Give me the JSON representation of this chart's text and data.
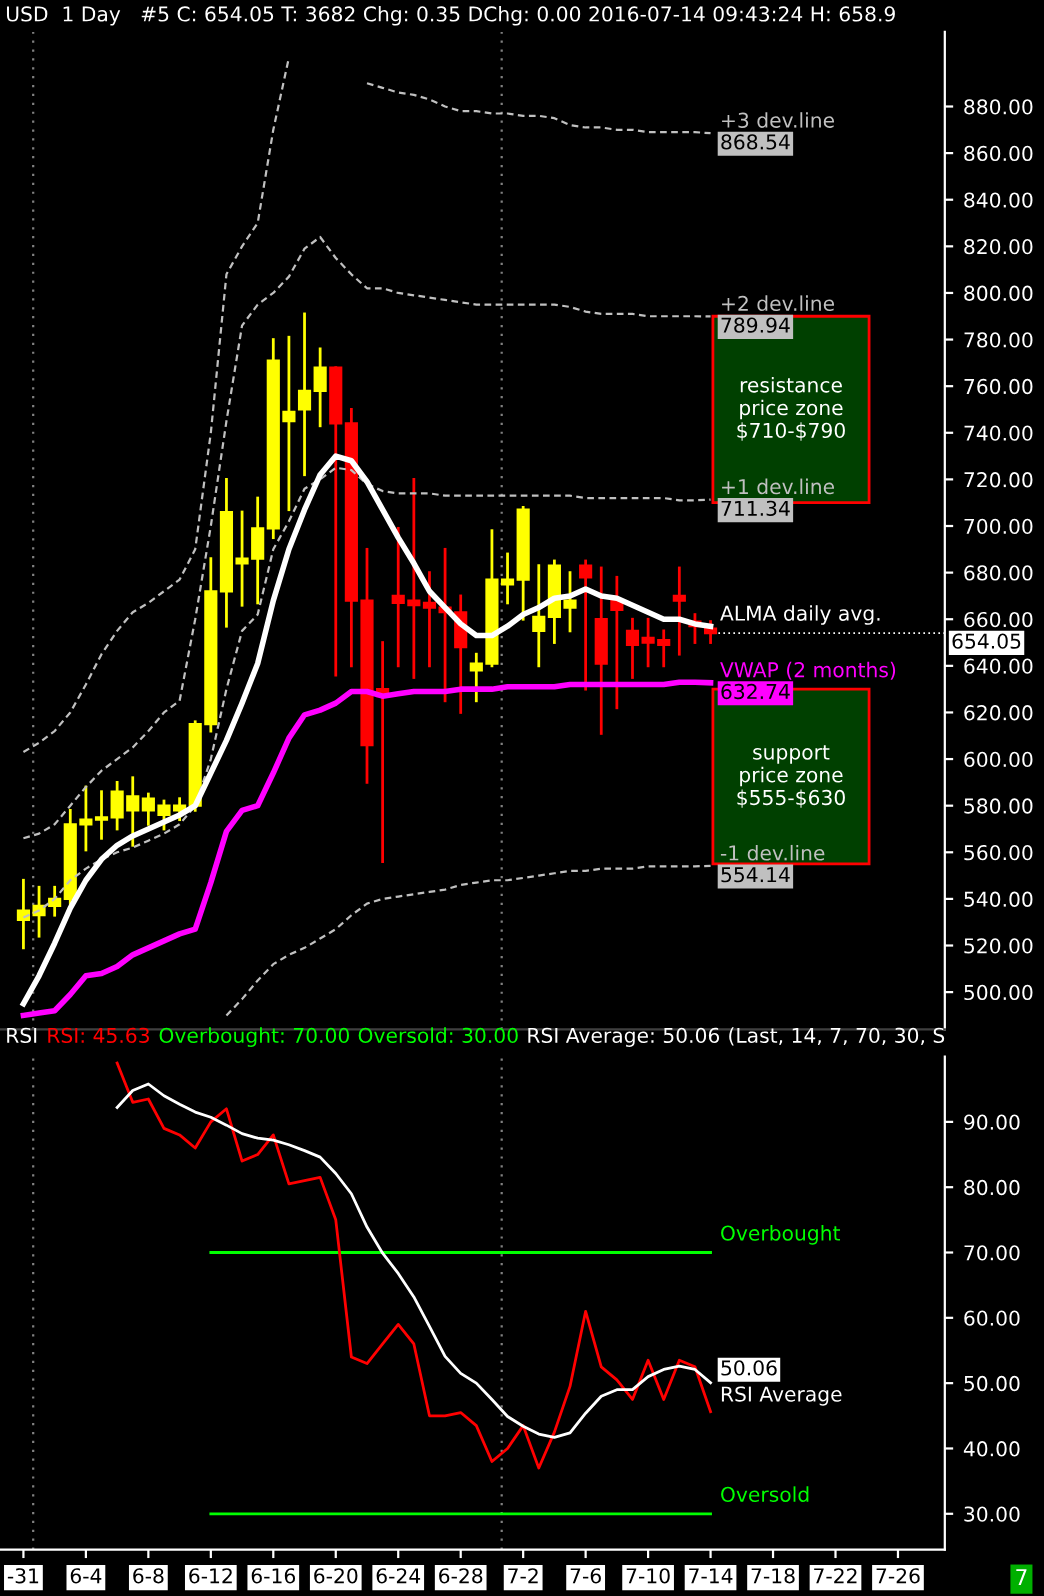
{
  "chart_data": [
    {
      "type": "candlestick",
      "title": "USD  1 Day   #5 C: 654.05 T: 3682 Chg: 0.35 DChg: 0.00 2016-07-14 09:43:24 H: 658.9",
      "x": [
        "2016-05-31",
        "2016-06-01",
        "2016-06-02",
        "2016-06-03",
        "2016-06-04",
        "2016-06-05",
        "2016-06-06",
        "2016-06-07",
        "2016-06-08",
        "2016-06-09",
        "2016-06-10",
        "2016-06-11",
        "2016-06-12",
        "2016-06-13",
        "2016-06-14",
        "2016-06-15",
        "2016-06-16",
        "2016-06-17",
        "2016-06-18",
        "2016-06-19",
        "2016-06-20",
        "2016-06-21",
        "2016-06-22",
        "2016-06-23",
        "2016-06-24",
        "2016-06-25",
        "2016-06-26",
        "2016-06-27",
        "2016-06-28",
        "2016-06-29",
        "2016-06-30",
        "2016-07-01",
        "2016-07-02",
        "2016-07-03",
        "2016-07-04",
        "2016-07-05",
        "2016-07-06",
        "2016-07-07",
        "2016-07-08",
        "2016-07-09",
        "2016-07-10",
        "2016-07-11",
        "2016-07-12",
        "2016-07-13",
        "2016-07-14"
      ],
      "ohlc": [
        [
          531,
          548,
          519,
          535
        ],
        [
          533,
          545,
          524,
          537
        ],
        [
          537,
          545,
          533,
          540
        ],
        [
          540,
          578,
          536,
          572
        ],
        [
          572,
          588,
          561,
          574
        ],
        [
          574,
          586,
          566,
          575
        ],
        [
          575,
          590,
          570,
          586
        ],
        [
          578,
          592,
          563,
          584
        ],
        [
          578,
          585,
          572,
          583
        ],
        [
          576,
          582,
          570,
          580
        ],
        [
          578,
          583,
          574,
          580
        ],
        [
          580,
          616,
          578,
          615
        ],
        [
          615,
          686,
          612,
          672
        ],
        [
          672,
          720,
          657,
          706
        ],
        [
          684,
          706,
          666,
          686
        ],
        [
          686,
          712,
          667,
          699
        ],
        [
          699,
          780,
          695,
          771
        ],
        [
          745,
          781,
          707,
          749
        ],
        [
          750,
          791,
          722,
          758
        ],
        [
          758,
          776,
          743,
          768
        ],
        [
          768,
          768,
          636,
          744
        ],
        [
          744,
          750,
          640,
          668
        ],
        [
          668,
          690,
          590,
          606
        ],
        [
          630,
          650,
          556,
          627
        ],
        [
          670,
          699,
          640,
          667
        ],
        [
          668,
          720,
          635,
          666
        ],
        [
          667,
          680,
          640,
          665
        ],
        [
          665,
          690,
          625,
          663
        ],
        [
          663,
          670,
          620,
          648
        ],
        [
          638,
          645,
          625,
          641
        ],
        [
          641,
          698,
          640,
          677
        ],
        [
          675,
          688,
          667,
          677
        ],
        [
          677,
          708,
          660,
          707
        ],
        [
          655,
          683,
          640,
          661
        ],
        [
          661,
          685,
          650,
          683
        ],
        [
          665,
          680,
          655,
          668
        ],
        [
          683,
          685,
          630,
          678
        ],
        [
          660,
          682,
          611,
          641
        ],
        [
          668,
          678,
          622,
          664
        ],
        [
          655,
          660,
          635,
          649
        ],
        [
          652,
          660,
          640,
          650
        ],
        [
          651,
          655,
          640,
          649
        ],
        [
          670,
          682,
          645,
          668
        ],
        [
          659,
          662,
          650,
          657
        ],
        [
          656,
          659,
          650,
          654.05
        ]
      ],
      "colors": [
        "#ffff00",
        "#ffff00",
        "#ffff00",
        "#ffff00",
        "#ffff00",
        "#ffff00",
        "#ffff00",
        "#ffff00",
        "#ffff00",
        "#ffff00",
        "#ffff00",
        "#ffff00",
        "#ffff00",
        "#ffff00",
        "#ffff00",
        "#ffff00",
        "#ffff00",
        "#ffff00",
        "#ffff00",
        "#ffff00",
        "#ff0000",
        "#ff0000",
        "#ff0000",
        "#ff0000",
        "#ff0000",
        "#ff0000",
        "#ff0000",
        "#ff0000",
        "#ff0000",
        "#ffff00",
        "#ffff00",
        "#ffff00",
        "#ffff00",
        "#ffff00",
        "#ffff00",
        "#ffff00",
        "#ff0000",
        "#ff0000",
        "#ff0000",
        "#ff0000",
        "#ff0000",
        "#ff0000",
        "#ff0000",
        "#ff0000",
        "#ff0000"
      ],
      "series": [
        {
          "type": "line",
          "name": "+3 dev.line",
          "color": "#c0c0c0",
          "line_style": "dashed",
          "values": [
            603,
            607,
            612,
            620,
            632,
            645,
            655,
            663,
            667,
            672,
            677,
            690,
            740,
            808,
            820,
            830,
            870,
            901,
            null,
            null,
            null,
            null,
            890,
            888,
            886,
            885,
            883,
            880,
            878,
            878,
            877,
            877,
            876,
            876,
            875,
            872,
            871,
            871,
            870,
            870,
            869,
            869,
            869,
            869,
            868.54
          ]
        },
        {
          "type": "line",
          "name": "+2 dev.line",
          "color": "#c0c0c0",
          "line_style": "dashed",
          "values": [
            566,
            568,
            572,
            580,
            588,
            595,
            600,
            605,
            612,
            620,
            625,
            660,
            700,
            745,
            786,
            795,
            800,
            807,
            819,
            824,
            815,
            808,
            802,
            802,
            800,
            799,
            798,
            797,
            796,
            795,
            795,
            795,
            795,
            795,
            795,
            794,
            792,
            791,
            791,
            791,
            790,
            790,
            790,
            790,
            789.94
          ]
        },
        {
          "type": "line",
          "name": "+1 dev.line",
          "color": "#c0c0c0",
          "line_style": "dashed",
          "values": [
            532,
            535,
            540,
            548,
            553,
            557,
            560,
            562,
            565,
            568,
            572,
            580,
            600,
            630,
            655,
            662,
            690,
            702,
            716,
            720,
            725,
            724,
            718,
            715,
            714,
            714,
            714,
            713,
            713,
            713,
            713,
            713,
            713,
            713,
            713,
            713,
            712,
            712,
            712,
            712,
            712,
            712,
            711,
            711,
            711.34
          ]
        },
        {
          "type": "line",
          "name": "ALMA daily avg.",
          "color": "#ffffff",
          "line_style": "solid",
          "values": [
            495,
            507,
            521,
            536,
            548,
            557,
            563,
            567,
            570,
            573,
            576,
            580,
            594,
            608,
            624,
            641,
            668,
            690,
            707,
            722,
            730,
            728,
            719,
            707,
            695,
            684,
            672,
            665,
            658,
            653,
            653,
            657,
            662,
            665,
            669,
            670,
            673,
            670,
            669,
            666,
            663,
            660,
            660,
            658,
            657
          ]
        },
        {
          "type": "line",
          "name": "VWAP (2 months)",
          "color": "#ff00ff",
          "line_style": "solid",
          "values": [
            490,
            491,
            492,
            499,
            507,
            508,
            511,
            516,
            519,
            522,
            525,
            527,
            547,
            569,
            578,
            580,
            594,
            609,
            619,
            621,
            624,
            629,
            629,
            627,
            628,
            629,
            629,
            629,
            630,
            630,
            630,
            631,
            631,
            631,
            631,
            632,
            632,
            632,
            632,
            632,
            632,
            632,
            633,
            633,
            632.74
          ]
        },
        {
          "type": "line",
          "name": "-1 dev.line",
          "color": "#c0c0c0",
          "line_style": "dashed",
          "values": [
            null,
            null,
            null,
            null,
            null,
            null,
            null,
            null,
            null,
            null,
            null,
            null,
            null,
            490,
            497,
            505,
            512,
            516,
            519,
            523,
            527,
            533,
            538,
            540,
            541,
            542,
            543,
            544,
            546,
            547,
            548,
            548,
            549,
            550,
            551,
            552,
            552,
            553,
            553,
            553,
            554,
            554,
            554,
            554,
            554.14
          ]
        }
      ],
      "bands": [
        {
          "axis": "y",
          "from": 710,
          "to": 790,
          "label": "resistance\nprice zone\n$710-$790",
          "color": "#004000"
        },
        {
          "axis": "y",
          "from": 555,
          "to": 630,
          "label": "support\nprice zone\n$555-$630",
          "color": "#004000"
        }
      ],
      "ref_lines": [
        {
          "axis": "x",
          "value": "2016-05-31T15:00",
          "color": "#808080",
          "line_style": "dotted"
        },
        {
          "axis": "x",
          "value": "2016-06-30T15:00",
          "color": "#808080",
          "line_style": "dotted"
        }
      ],
      "annotations": [
        {
          "text": "868.54",
          "x": "2016-07-14",
          "y": 868.54
        },
        {
          "text": "789.94",
          "x": "2016-07-14",
          "y": 789.94
        },
        {
          "text": "711.34",
          "x": "2016-07-14",
          "y": 711.34
        },
        {
          "text": "654.05",
          "x": "2016-07-14",
          "y": 654.05
        },
        {
          "text": "632.74",
          "x": "2016-07-14",
          "y": 632.74
        },
        {
          "text": "554.14",
          "x": "2016-07-14",
          "y": 554.14
        }
      ],
      "xlim": [
        "2016-05-29T12:00",
        "2016-07-29"
      ],
      "ylim": [
        484,
        912
      ],
      "yticks": [
        {
          "value": 500,
          "label": "500.00"
        },
        {
          "value": 520,
          "label": "520.00"
        },
        {
          "value": 540,
          "label": "540.00"
        },
        {
          "value": 560,
          "label": "560.00"
        },
        {
          "value": 580,
          "label": "580.00"
        },
        {
          "value": 600,
          "label": "600.00"
        },
        {
          "value": 620,
          "label": "620.00"
        },
        {
          "value": 640,
          "label": "640.00"
        },
        {
          "value": 660,
          "label": "660.00"
        },
        {
          "value": 680,
          "label": "680.00"
        },
        {
          "value": 700,
          "label": "700.00"
        },
        {
          "value": 720,
          "label": "720.00"
        },
        {
          "value": 740,
          "label": "740.00"
        },
        {
          "value": 760,
          "label": "760.00"
        },
        {
          "value": 780,
          "label": "780.00"
        },
        {
          "value": 800,
          "label": "800.00"
        },
        {
          "value": 820,
          "label": "820.00"
        },
        {
          "value": 840,
          "label": "840.00"
        },
        {
          "value": 860,
          "label": "860.00"
        },
        {
          "value": 880,
          "label": "880.00"
        }
      ],
      "tick_labels": "y",
      "grid": false,
      "legend": "right"
    },
    {
      "type": "line",
      "title": "RSI",
      "xlabel": "7",
      "x": [
        "2016-06-06",
        "2016-06-07",
        "2016-06-08",
        "2016-06-09",
        "2016-06-10",
        "2016-06-11",
        "2016-06-12",
        "2016-06-13",
        "2016-06-14",
        "2016-06-15",
        "2016-06-16",
        "2016-06-17",
        "2016-06-18",
        "2016-06-19",
        "2016-06-20",
        "2016-06-21",
        "2016-06-22",
        "2016-06-23",
        "2016-06-24",
        "2016-06-25",
        "2016-06-26",
        "2016-06-27",
        "2016-06-28",
        "2016-06-29",
        "2016-06-30",
        "2016-07-01",
        "2016-07-02",
        "2016-07-03",
        "2016-07-04",
        "2016-07-05",
        "2016-07-06",
        "2016-07-07",
        "2016-07-08",
        "2016-07-09",
        "2016-07-10",
        "2016-07-11",
        "2016-07-12",
        "2016-07-13",
        "2016-07-14"
      ],
      "series": [
        {
          "color": "#ff0000",
          "values": [
            99,
            93,
            93.5,
            89,
            88,
            86,
            90,
            92,
            84,
            85,
            88,
            80.5,
            81,
            81.5,
            75,
            54,
            53,
            56,
            59,
            56,
            45,
            45,
            45.5,
            43.5,
            38,
            40,
            43.5,
            37,
            42.5,
            49.5,
            61,
            52.5,
            50.5,
            47.5,
            53.5,
            47.5,
            53.5,
            52.5,
            45.63
          ]
        },
        {
          "name": "RSI Average",
          "color": "#ffffff",
          "values": [
            92.2,
            94.8,
            95.8,
            94,
            92.7,
            91.5,
            90.7,
            89.5,
            88.2,
            87.5,
            87.2,
            86.5,
            85.6,
            84.6,
            82.1,
            79,
            73.9,
            69.9,
            66.8,
            63.2,
            58.7,
            54.1,
            51.5,
            50,
            47.5,
            44.9,
            43.4,
            42.2,
            41.7,
            42.4,
            45.4,
            48,
            49,
            49,
            51,
            52.1,
            52.6,
            52.1,
            50.06
          ]
        }
      ],
      "ref_lines": [
        {
          "axis": "y",
          "value": 70,
          "label": "Overbought",
          "color": "#00ff00"
        },
        {
          "axis": "y",
          "value": 30,
          "label": "Oversold",
          "color": "#00ff00"
        },
        {
          "axis": "x",
          "value": "2016-05-31T15:00",
          "color": "#808080",
          "line_style": "dotted"
        },
        {
          "axis": "x",
          "value": "2016-06-30T15:00",
          "color": "#808080",
          "line_style": "dotted"
        }
      ],
      "annotations": [
        "RSI: 45.63",
        "Overbought: 70.00",
        "Oversold: 30.00",
        "RSI Average: 50.06",
        "(Last, 14, 7, 70, 30, S",
        {
          "text": "50.06",
          "x": "2016-07-14",
          "y": 50.06
        }
      ],
      "xlim": [
        "2016-05-29T12:00",
        "2016-07-29"
      ],
      "ylim": [
        24.5,
        100
      ],
      "xticks": [
        {
          "value": "2016-05-31",
          "label": "-31"
        },
        {
          "value": "2016-06-04",
          "label": "6-4"
        },
        {
          "value": "2016-06-08",
          "label": "6-8"
        },
        {
          "value": "2016-06-12",
          "label": "6-12"
        },
        {
          "value": "2016-06-16",
          "label": "6-16"
        },
        {
          "value": "2016-06-20",
          "label": "6-20"
        },
        {
          "value": "2016-06-24",
          "label": "6-24"
        },
        {
          "value": "2016-06-28",
          "label": "6-28"
        },
        {
          "value": "2016-07-02",
          "label": "7-2"
        },
        {
          "value": "2016-07-06",
          "label": "7-6"
        },
        {
          "value": "2016-07-10",
          "label": "7-10"
        },
        {
          "value": "2016-07-14",
          "label": "7-14"
        },
        {
          "value": "2016-07-18",
          "label": "7-18"
        },
        {
          "value": "2016-07-22",
          "label": "7-22"
        },
        {
          "value": "2016-07-26",
          "label": "7-26"
        }
      ],
      "yticks": [
        {
          "value": 30,
          "label": "30.00"
        },
        {
          "value": 40,
          "label": "40.00"
        },
        {
          "value": 50,
          "label": "50.00"
        },
        {
          "value": 60,
          "label": "60.00"
        },
        {
          "value": 70,
          "label": "70.00"
        },
        {
          "value": 80,
          "label": "80.00"
        },
        {
          "value": 90,
          "label": "90.00"
        }
      ],
      "grid": false,
      "legend": "right"
    }
  ]
}
